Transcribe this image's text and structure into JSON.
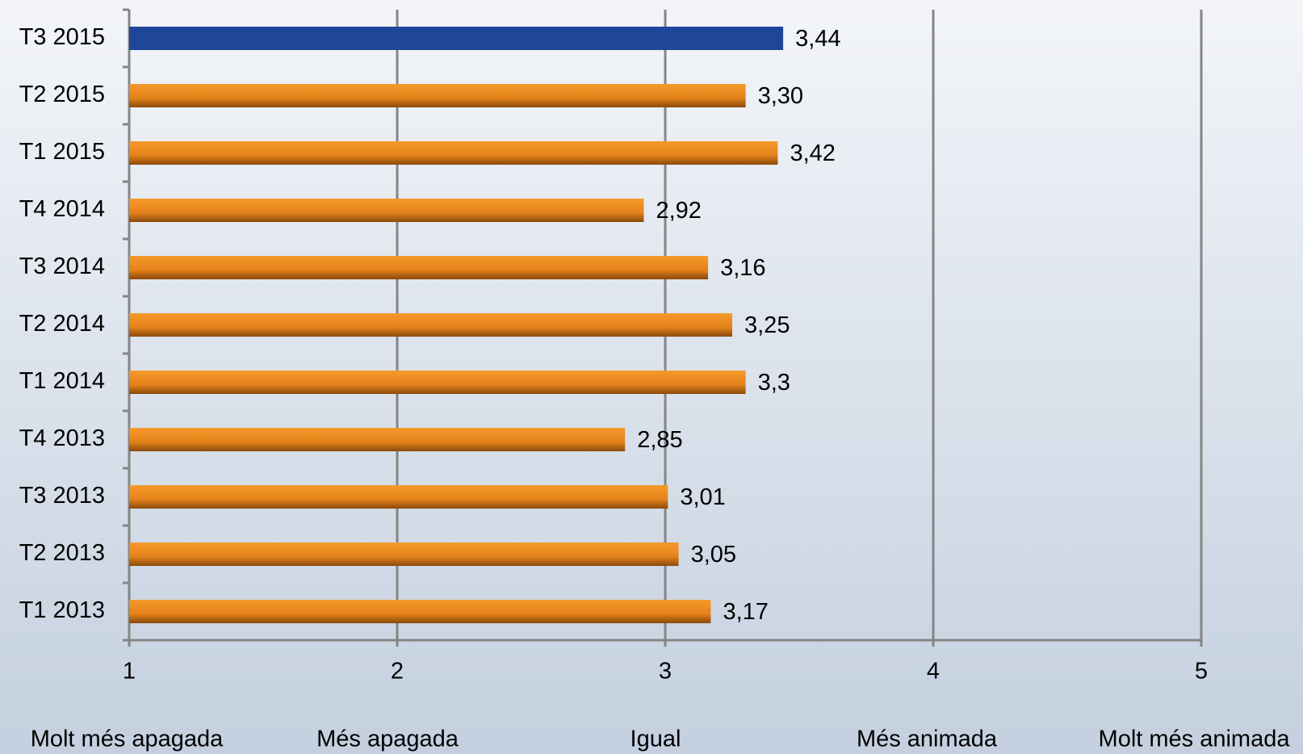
{
  "chart_data": {
    "type": "bar",
    "orientation": "horizontal",
    "categories": [
      "T3 2015",
      "T2 2015",
      "T1 2015",
      "T4 2014",
      "T3 2014",
      "T2 2014",
      "T1 2014",
      "T4 2013",
      "T3 2013",
      "T2 2013",
      "T1 2013"
    ],
    "values": [
      3.44,
      3.3,
      3.42,
      2.92,
      3.16,
      3.25,
      3.3,
      2.85,
      3.01,
      3.05,
      3.17
    ],
    "value_labels": [
      "3,44",
      "3,30",
      "3,42",
      "2,92",
      "3,16",
      "3,25",
      "3,3",
      "2,85",
      "3,01",
      "3,05",
      "3,17"
    ],
    "colors": [
      "#1f4799",
      "#e98a20",
      "#e98a20",
      "#e98a20",
      "#e98a20",
      "#e98a20",
      "#e98a20",
      "#e98a20",
      "#e98a20",
      "#e98a20",
      "#e98a20"
    ],
    "xlim": [
      1,
      5
    ],
    "xticks": [
      1,
      2,
      3,
      4,
      5
    ],
    "grid": true,
    "scale_labels": [
      "Molt més apagada",
      "Més apagada",
      "Igual",
      "Més animada",
      "Molt més animada"
    ]
  }
}
